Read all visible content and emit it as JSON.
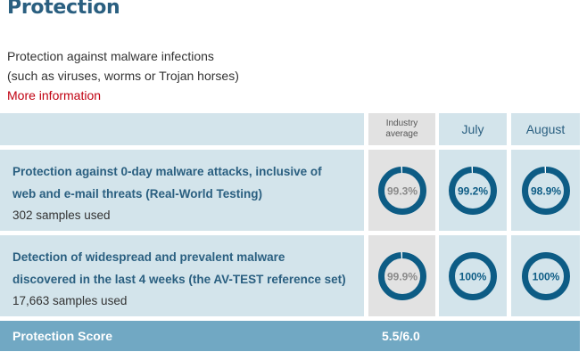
{
  "header": {
    "title": "Protection",
    "description_line1": "Protection against malware infections",
    "description_line2": "(such as viruses, worms or Trojan horses)",
    "more_link": "More information"
  },
  "table": {
    "columns": {
      "industry_line1": "Industry",
      "industry_line2": "average",
      "month1": "July",
      "month2": "August"
    },
    "rows": [
      {
        "title_line1": "Protection against 0-day malware attacks, inclusive of",
        "title_line2": "web and e-mail threats (Real-World Testing)",
        "samples": "302 samples used",
        "industry": {
          "label": "99.3%",
          "percent": 99.3
        },
        "month1": {
          "label": "99.2%",
          "percent": 99.2
        },
        "month2": {
          "label": "98.9%",
          "percent": 98.9
        }
      },
      {
        "title_line1": "Detection of widespread and prevalent malware",
        "title_line2": "discovered in the last 4 weeks (the AV-TEST reference set)",
        "samples": "17,663 samples used",
        "industry": {
          "label": "99.9%",
          "percent": 99.9
        },
        "month1": {
          "label": "100%",
          "percent": 100
        },
        "month2": {
          "label": "100%",
          "percent": 100
        }
      }
    ]
  },
  "score": {
    "label": "Protection Score",
    "value": "5.5/6.0"
  },
  "colors": {
    "ring": "#0d5c85",
    "ring_track": "#ffffff",
    "industry_text": "#8a8a8a",
    "month_text": "#0d5c85",
    "link": "#c00010"
  }
}
